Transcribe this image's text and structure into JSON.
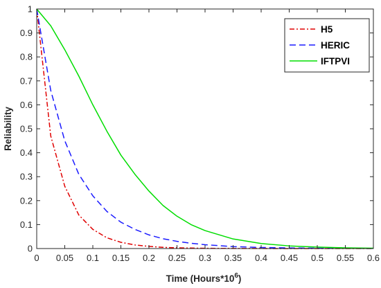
{
  "chart_data": {
    "type": "line",
    "title": "",
    "xlabel": "Time (Hours*10",
    "xlabel_superscript": "6",
    "xlabel_suffix": ")",
    "ylabel": "Reliability",
    "xlim": [
      0,
      0.6
    ],
    "ylim": [
      0,
      1
    ],
    "xticks": [
      0,
      0.05,
      0.1,
      0.15,
      0.2,
      0.25,
      0.3,
      0.35,
      0.4,
      0.45,
      0.5,
      0.55,
      0.6
    ],
    "xtick_labels": [
      "0",
      "0.05",
      "0.1",
      "0.15",
      "0.2",
      "0.25",
      "0.3",
      "0.35",
      "0.4",
      "0.45",
      "0.5",
      "0.55",
      "0.6"
    ],
    "yticks": [
      0,
      0.1,
      0.2,
      0.3,
      0.4,
      0.5,
      0.6,
      0.7,
      0.8,
      0.9,
      1
    ],
    "ytick_labels": [
      "0",
      "0.1",
      "0.2",
      "0.3",
      "0.4",
      "0.5",
      "0.6",
      "0.7",
      "0.8",
      "0.9",
      "1"
    ],
    "grid": false,
    "legend_position": "top-right",
    "x": [
      0,
      0.025,
      0.05,
      0.075,
      0.1,
      0.125,
      0.15,
      0.175,
      0.2,
      0.225,
      0.25,
      0.275,
      0.3,
      0.35,
      0.4,
      0.45,
      0.5,
      0.55,
      0.6
    ],
    "series": [
      {
        "name": "H5",
        "color": "#e00000",
        "dash": "dash-dot",
        "values": [
          1.0,
          0.47,
          0.26,
          0.14,
          0.08,
          0.045,
          0.026,
          0.015,
          0.009,
          0.005,
          0.003,
          0.002,
          0.001,
          0.0005,
          0.0002,
          0.0001,
          0.0,
          0.0,
          0.0
        ]
      },
      {
        "name": "HERIC",
        "color": "#1a1aff",
        "dash": "dashed",
        "values": [
          1.0,
          0.66,
          0.45,
          0.31,
          0.22,
          0.155,
          0.11,
          0.08,
          0.057,
          0.041,
          0.03,
          0.022,
          0.016,
          0.008,
          0.0045,
          0.0025,
          0.0013,
          0.0007,
          0.0004
        ]
      },
      {
        "name": "IFTPVI",
        "color": "#00dd00",
        "dash": "solid",
        "values": [
          1.0,
          0.93,
          0.83,
          0.72,
          0.6,
          0.49,
          0.39,
          0.31,
          0.24,
          0.18,
          0.135,
          0.1,
          0.075,
          0.04,
          0.021,
          0.011,
          0.006,
          0.003,
          0.0015
        ]
      }
    ]
  }
}
